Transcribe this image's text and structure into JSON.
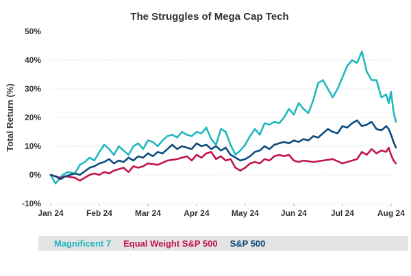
{
  "chart_data": {
    "type": "line",
    "title": "The Struggles of Mega Cap Tech",
    "xlabel": "",
    "ylabel": "Total Return (%)",
    "ylim": [
      -10,
      50
    ],
    "yticks": [
      "-10%",
      "0%",
      "10%",
      "20%",
      "30%",
      "40%",
      "50%"
    ],
    "ytick_values": [
      -10,
      0,
      10,
      20,
      30,
      40,
      50
    ],
    "xticks": [
      "Jan 24",
      "Feb 24",
      "Mar 24",
      "Apr 24",
      "May 24",
      "Jun 24",
      "Jul 24",
      "Aug 24"
    ],
    "xtick_values": [
      0,
      1,
      2,
      3,
      4,
      5,
      6,
      7
    ],
    "xlim": [
      0,
      7.1
    ],
    "grid": "horizontal",
    "legend_position": "bottom",
    "series": [
      {
        "name": "Magnificent 7",
        "color": "#1eb7bf",
        "x": [
          0,
          0.05,
          0.1,
          0.15,
          0.25,
          0.35,
          0.5,
          0.6,
          0.7,
          0.8,
          0.9,
          1.0,
          1.1,
          1.2,
          1.3,
          1.4,
          1.5,
          1.6,
          1.7,
          1.8,
          1.9,
          2.0,
          2.1,
          2.2,
          2.3,
          2.4,
          2.5,
          2.6,
          2.7,
          2.8,
          2.9,
          3.0,
          3.1,
          3.2,
          3.3,
          3.4,
          3.5,
          3.6,
          3.7,
          3.8,
          3.9,
          4.0,
          4.1,
          4.2,
          4.3,
          4.4,
          4.5,
          4.6,
          4.7,
          4.8,
          4.9,
          5.0,
          5.1,
          5.2,
          5.3,
          5.4,
          5.5,
          5.6,
          5.7,
          5.8,
          5.9,
          6.0,
          6.1,
          6.2,
          6.3,
          6.4,
          6.5,
          6.6,
          6.7,
          6.8,
          6.9,
          6.95,
          7.0,
          7.05,
          7.1
        ],
        "values": [
          0,
          -1.5,
          -3,
          -2,
          0,
          1,
          0.5,
          3.5,
          4.5,
          6,
          5,
          8,
          10.5,
          9,
          7,
          10,
          8.5,
          7,
          10,
          11,
          9,
          12,
          11.5,
          10,
          12,
          13.5,
          14,
          13,
          15,
          14,
          13.5,
          15,
          14.5,
          16.5,
          12.5,
          10.5,
          16,
          15,
          10.5,
          7,
          8.5,
          10.5,
          13.5,
          16,
          14,
          18,
          17.5,
          18.5,
          18,
          20,
          23,
          21,
          25,
          23,
          21.5,
          26,
          32,
          33,
          30,
          27,
          30,
          34,
          38,
          40,
          39,
          43,
          36,
          33,
          33,
          27,
          28,
          25,
          29,
          22,
          18.5
        ]
      },
      {
        "name": "Equal Weight S&P 500",
        "color": "#c3124b",
        "x": [
          0,
          0.1,
          0.2,
          0.3,
          0.5,
          0.6,
          0.8,
          0.9,
          1.0,
          1.1,
          1.2,
          1.3,
          1.4,
          1.5,
          1.6,
          1.7,
          1.8,
          1.9,
          2.0,
          2.2,
          2.4,
          2.6,
          2.8,
          2.9,
          3.0,
          3.1,
          3.2,
          3.3,
          3.4,
          3.5,
          3.6,
          3.7,
          3.8,
          3.9,
          4.0,
          4.1,
          4.2,
          4.3,
          4.4,
          4.5,
          4.6,
          4.7,
          4.8,
          4.9,
          5.0,
          5.1,
          5.2,
          5.4,
          5.6,
          5.8,
          6.0,
          6.2,
          6.3,
          6.4,
          6.5,
          6.6,
          6.7,
          6.8,
          6.9,
          6.95,
          7.0,
          7.05,
          7.1
        ],
        "values": [
          0,
          -0.5,
          -1,
          -0.5,
          -1,
          -2,
          0,
          0.5,
          0,
          1,
          0.5,
          1.5,
          2,
          2.5,
          1,
          3,
          2.5,
          3,
          4,
          3.5,
          5,
          5.5,
          6.5,
          5,
          7,
          6,
          7.5,
          8,
          5.5,
          6.5,
          5,
          5.5,
          2.5,
          1.5,
          2.5,
          4,
          4.5,
          4,
          5.5,
          5,
          6.5,
          7,
          6.5,
          7,
          5,
          4.5,
          5,
          4.5,
          5,
          5.5,
          4,
          5,
          5.5,
          8,
          7,
          9,
          7.5,
          8.5,
          8,
          9.5,
          7,
          5,
          4
        ]
      },
      {
        "name": "S&P 500",
        "color": "#0a4a7c",
        "x": [
          0,
          0.1,
          0.2,
          0.3,
          0.4,
          0.5,
          0.6,
          0.8,
          0.9,
          1.0,
          1.1,
          1.2,
          1.3,
          1.4,
          1.5,
          1.6,
          1.7,
          1.8,
          1.9,
          2.0,
          2.1,
          2.2,
          2.3,
          2.4,
          2.5,
          2.6,
          2.7,
          2.8,
          2.9,
          3.0,
          3.1,
          3.2,
          3.3,
          3.4,
          3.5,
          3.6,
          3.7,
          3.8,
          3.9,
          4.0,
          4.1,
          4.2,
          4.3,
          4.4,
          4.5,
          4.6,
          4.7,
          4.8,
          4.9,
          5.0,
          5.1,
          5.2,
          5.3,
          5.4,
          5.5,
          5.6,
          5.7,
          5.8,
          5.9,
          6.0,
          6.1,
          6.2,
          6.3,
          6.4,
          6.5,
          6.6,
          6.7,
          6.8,
          6.9,
          6.95,
          7.0,
          7.05,
          7.1
        ],
        "values": [
          0,
          -0.5,
          -1.5,
          -0.5,
          0,
          0.5,
          0,
          2.5,
          3,
          4,
          4.5,
          5.5,
          4,
          5,
          4.5,
          6,
          5,
          6.5,
          6,
          7.5,
          6.5,
          8,
          7.5,
          9,
          10.5,
          9,
          10,
          9.5,
          9,
          11,
          10,
          10.5,
          9,
          10,
          8.5,
          9.5,
          7,
          6,
          5,
          5.5,
          6.5,
          8,
          8.5,
          10,
          9,
          10.5,
          11,
          11.5,
          11,
          12,
          11.5,
          12.5,
          12,
          13.5,
          13,
          14.5,
          16,
          15,
          14.5,
          17,
          16.5,
          18,
          19,
          17,
          17.5,
          18.5,
          16,
          15.5,
          17,
          16,
          14,
          11.5,
          9.5
        ]
      }
    ]
  }
}
